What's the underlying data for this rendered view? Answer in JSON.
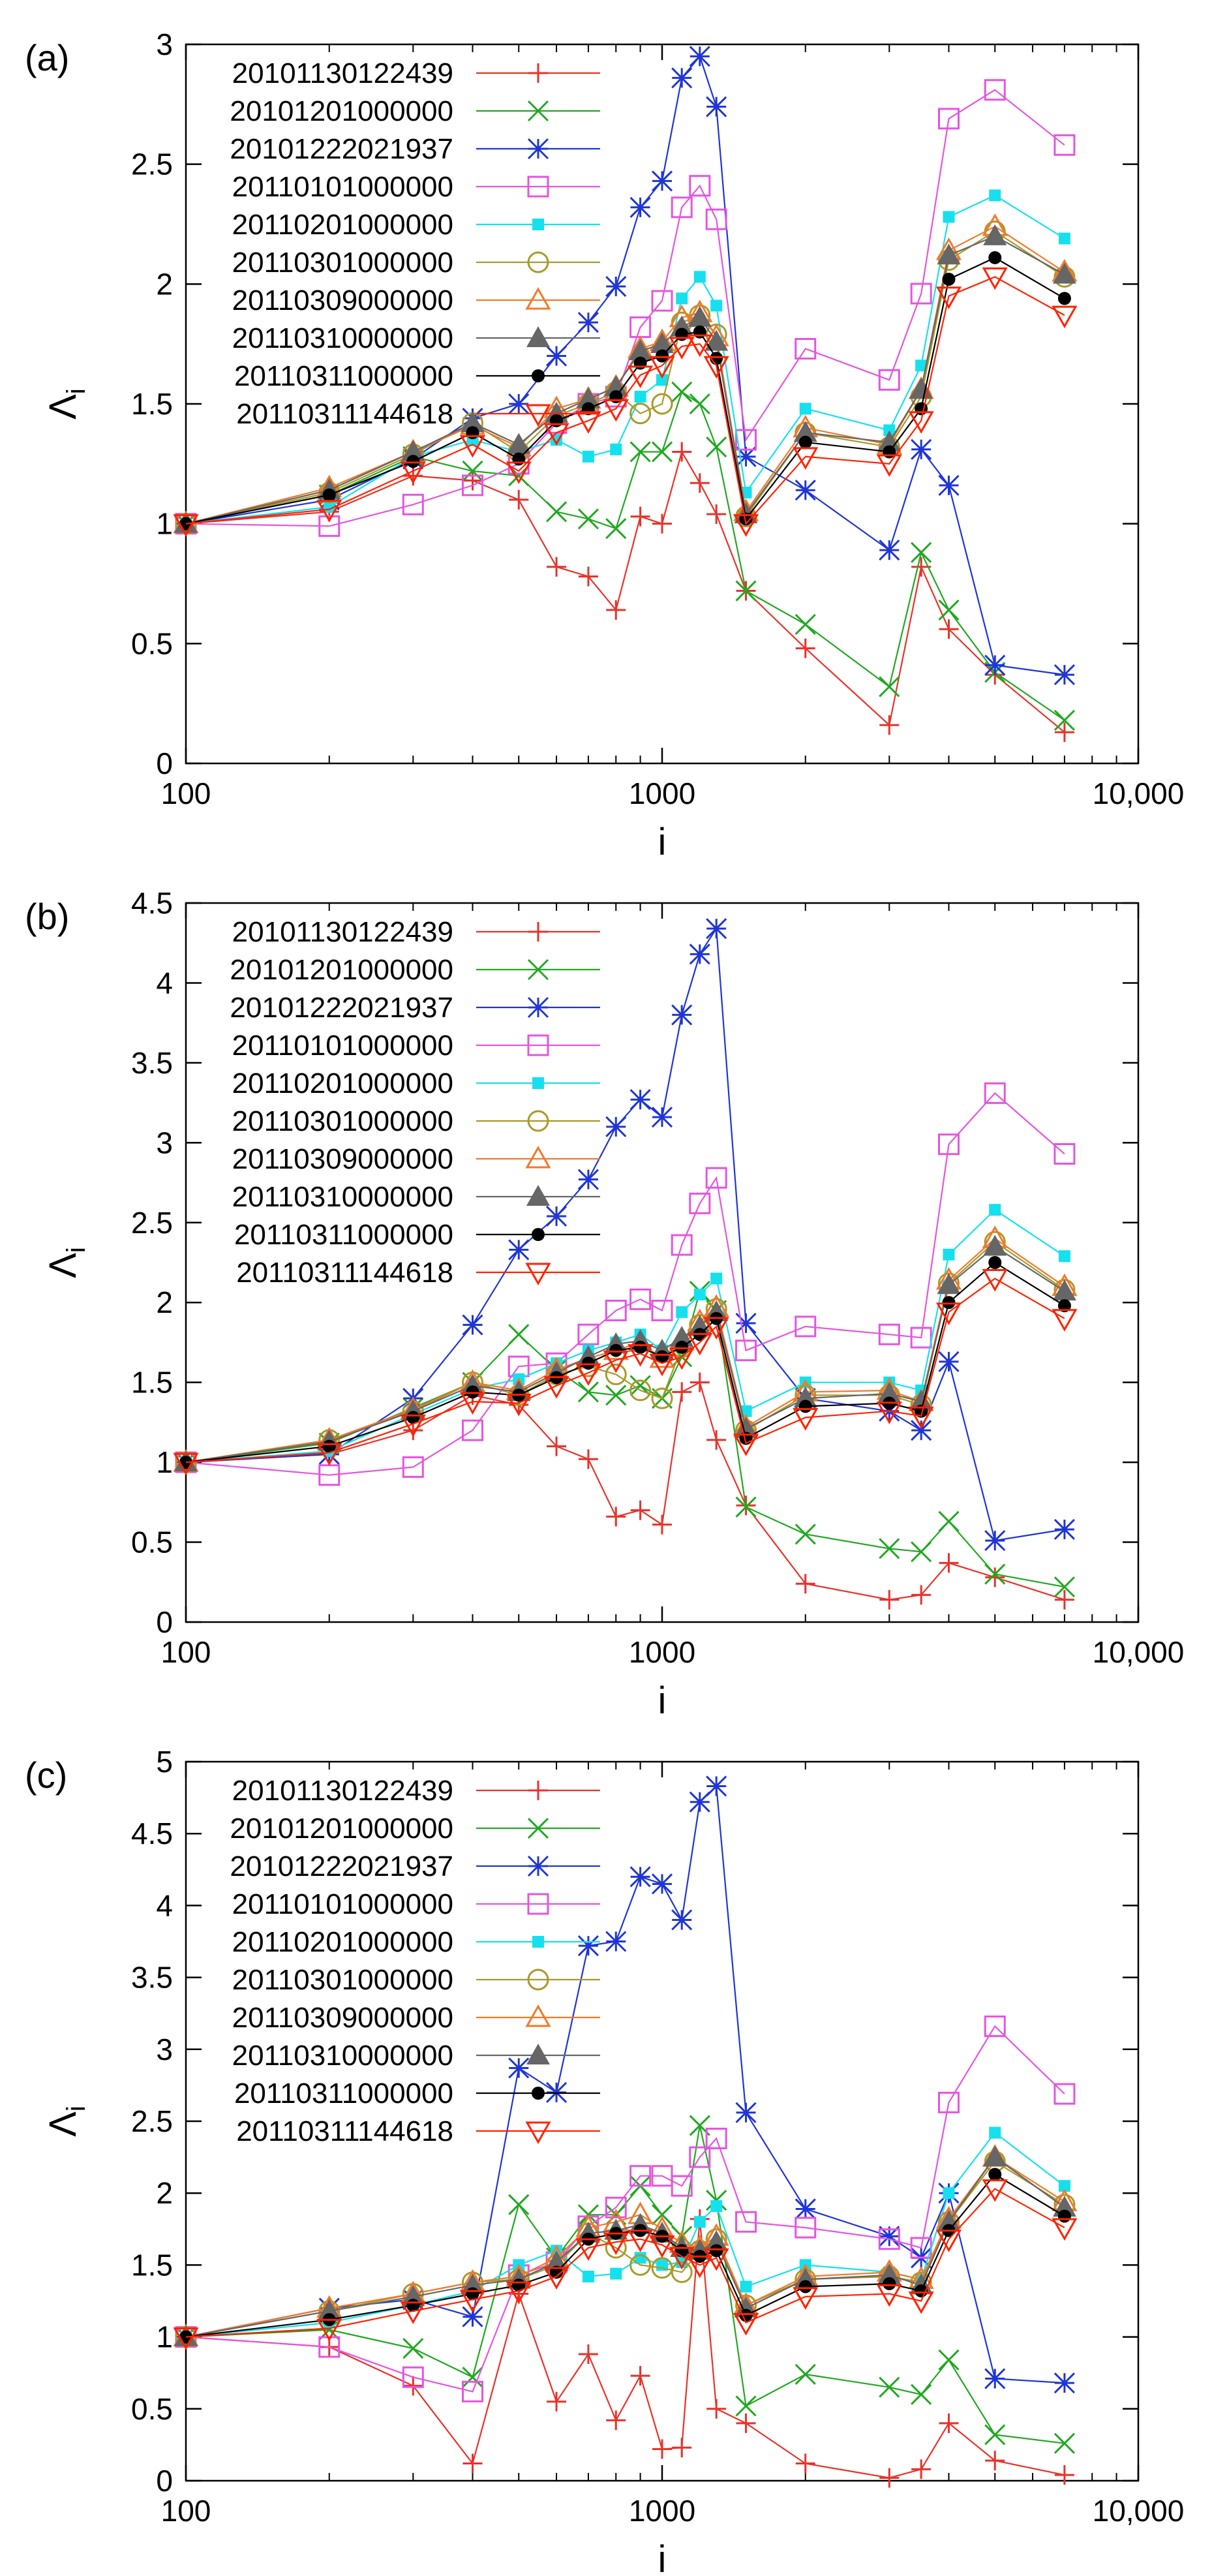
{
  "colors": {
    "s1": "#e8322a",
    "s2": "#21a821",
    "s3": "#1f35d6",
    "s4": "#e455e0",
    "s5": "#16e0ee",
    "s6": "#a89a2a",
    "s7": "#f07a2a",
    "s8": "#666666",
    "s9": "#000000",
    "s10": "#ff2200"
  },
  "chart_data": [
    {
      "type": "line",
      "panel_label": "(a)",
      "xlabel": "i",
      "ylabel": "Λ",
      "ylabel_sub": "i",
      "xscale": "log",
      "xlim": [
        100,
        10000
      ],
      "ylim": [
        0,
        3
      ],
      "xticks": [
        {
          "v": 100,
          "label": "100"
        },
        {
          "v": 1000,
          "label": "1000"
        },
        {
          "v": 10000,
          "label": "10,000"
        }
      ],
      "yticks": [
        {
          "v": 0,
          "label": "0"
        },
        {
          "v": 0.5,
          "label": "0.5"
        },
        {
          "v": 1,
          "label": "1"
        },
        {
          "v": 1.5,
          "label": "1.5"
        },
        {
          "v": 2,
          "label": "2"
        },
        {
          "v": 2.5,
          "label": "2.5"
        },
        {
          "v": 3,
          "label": "3"
        }
      ],
      "x": [
        100,
        200,
        300,
        400,
        500,
        600,
        700,
        800,
        900,
        1000,
        1100,
        1200,
        1300,
        1500,
        2000,
        3000,
        3500,
        4000,
        5000,
        7000
      ],
      "series": [
        {
          "name": "20101130122439",
          "marker": "plus",
          "color": "s1",
          "values": [
            1,
            1.05,
            1.2,
            1.18,
            1.1,
            0.82,
            0.78,
            0.64,
            1.03,
            1.0,
            1.3,
            1.17,
            1.04,
            0.72,
            0.48,
            0.16,
            0.82,
            0.56,
            0.37,
            0.13
          ]
        },
        {
          "name": "20101201000000",
          "marker": "cross",
          "color": "s2",
          "values": [
            1,
            1.12,
            1.28,
            1.22,
            1.2,
            1.05,
            1.02,
            0.98,
            1.3,
            1.3,
            1.55,
            1.5,
            1.32,
            0.72,
            0.58,
            0.32,
            0.88,
            0.64,
            0.38,
            0.18
          ]
        },
        {
          "name": "20101222021937",
          "marker": "star",
          "color": "s3",
          "values": [
            1,
            1.1,
            1.27,
            1.44,
            1.5,
            1.7,
            1.84,
            1.99,
            2.32,
            2.43,
            2.86,
            2.95,
            2.74,
            1.28,
            1.14,
            0.89,
            1.31,
            1.16,
            0.41,
            0.37
          ]
        },
        {
          "name": "20110101000000",
          "marker": "square",
          "color": "s4",
          "values": [
            1,
            0.99,
            1.08,
            1.16,
            1.25,
            1.42,
            1.5,
            1.53,
            1.82,
            1.93,
            2.32,
            2.41,
            2.27,
            1.35,
            1.73,
            1.6,
            1.96,
            2.69,
            2.81,
            2.58
          ]
        },
        {
          "name": "20110201000000",
          "marker": "fsquare",
          "color": "s5",
          "values": [
            1,
            1.07,
            1.28,
            1.35,
            1.3,
            1.35,
            1.28,
            1.31,
            1.53,
            1.6,
            1.94,
            2.03,
            1.91,
            1.13,
            1.48,
            1.39,
            1.66,
            2.28,
            2.37,
            2.19
          ]
        },
        {
          "name": "20110301000000",
          "marker": "circle",
          "color": "s6",
          "values": [
            1,
            1.13,
            1.29,
            1.42,
            1.3,
            1.45,
            1.5,
            1.55,
            1.46,
            1.5,
            1.84,
            1.87,
            1.79,
            1.03,
            1.38,
            1.32,
            1.53,
            2.1,
            2.22,
            2.03
          ]
        },
        {
          "name": "20110309000000",
          "marker": "triangle",
          "color": "s7",
          "values": [
            1,
            1.15,
            1.3,
            1.41,
            1.32,
            1.48,
            1.52,
            1.57,
            1.73,
            1.76,
            1.86,
            1.88,
            1.78,
            1.05,
            1.4,
            1.33,
            1.56,
            2.14,
            2.24,
            2.05
          ]
        },
        {
          "name": "20110310000000",
          "marker": "ftriangle",
          "color": "s8",
          "values": [
            1,
            1.14,
            1.3,
            1.42,
            1.33,
            1.46,
            1.52,
            1.57,
            1.72,
            1.75,
            1.82,
            1.86,
            1.76,
            1.04,
            1.38,
            1.34,
            1.56,
            2.12,
            2.2,
            2.04
          ]
        },
        {
          "name": "20110311000000",
          "marker": "fcircle",
          "color": "s9",
          "values": [
            1,
            1.12,
            1.26,
            1.38,
            1.27,
            1.43,
            1.48,
            1.53,
            1.67,
            1.7,
            1.79,
            1.8,
            1.69,
            1.02,
            1.34,
            1.3,
            1.48,
            2.02,
            2.11,
            1.94
          ]
        },
        {
          "name": "20110311144618",
          "marker": "itriangle",
          "color": "s10",
          "values": [
            1,
            1.06,
            1.22,
            1.33,
            1.22,
            1.38,
            1.43,
            1.48,
            1.62,
            1.66,
            1.74,
            1.75,
            1.66,
            1.0,
            1.28,
            1.25,
            1.43,
            1.95,
            2.03,
            1.87
          ]
        }
      ]
    },
    {
      "type": "line",
      "panel_label": "(b)",
      "xlabel": "i",
      "ylabel": "Λ",
      "ylabel_sub": "i",
      "xscale": "log",
      "xlim": [
        100,
        10000
      ],
      "ylim": [
        0,
        4.5
      ],
      "xticks": [
        {
          "v": 100,
          "label": "100"
        },
        {
          "v": 1000,
          "label": "1000"
        },
        {
          "v": 10000,
          "label": "10,000"
        }
      ],
      "yticks": [
        {
          "v": 0,
          "label": "0"
        },
        {
          "v": 0.5,
          "label": "0.5"
        },
        {
          "v": 1,
          "label": "1"
        },
        {
          "v": 1.5,
          "label": "1.5"
        },
        {
          "v": 2,
          "label": "2"
        },
        {
          "v": 2.5,
          "label": "2.5"
        },
        {
          "v": 3,
          "label": "3"
        },
        {
          "v": 3.5,
          "label": "3.5"
        },
        {
          "v": 4,
          "label": "4"
        },
        {
          "v": 4.5,
          "label": "4.5"
        }
      ],
      "x": [
        100,
        200,
        300,
        400,
        500,
        600,
        700,
        800,
        900,
        1000,
        1100,
        1200,
        1300,
        1500,
        2000,
        3000,
        3500,
        4000,
        5000,
        7000
      ],
      "series": [
        {
          "name": "20101130122439",
          "marker": "plus",
          "color": "s1",
          "values": [
            1,
            1.05,
            1.2,
            1.42,
            1.36,
            1.1,
            1.02,
            0.66,
            0.7,
            0.61,
            1.44,
            1.5,
            1.14,
            0.73,
            0.24,
            0.14,
            0.17,
            0.37,
            0.28,
            0.14
          ]
        },
        {
          "name": "20101201000000",
          "marker": "cross",
          "color": "s2",
          "values": [
            1,
            1.12,
            1.34,
            1.5,
            1.8,
            1.58,
            1.44,
            1.42,
            1.48,
            1.4,
            1.66,
            2.07,
            1.95,
            0.72,
            0.55,
            0.46,
            0.44,
            0.63,
            0.3,
            0.22
          ]
        },
        {
          "name": "20101222021937",
          "marker": "star",
          "color": "s3",
          "values": [
            1,
            1.05,
            1.4,
            1.86,
            2.33,
            2.54,
            2.77,
            3.1,
            3.27,
            3.16,
            3.8,
            4.18,
            4.34,
            1.87,
            1.4,
            1.32,
            1.2,
            1.63,
            0.51,
            0.58
          ]
        },
        {
          "name": "20110101000000",
          "marker": "square",
          "color": "s4",
          "values": [
            1,
            0.92,
            0.97,
            1.2,
            1.6,
            1.62,
            1.8,
            1.95,
            2.02,
            1.95,
            2.36,
            2.62,
            2.78,
            1.7,
            1.85,
            1.8,
            1.78,
            2.99,
            3.31,
            2.93
          ]
        },
        {
          "name": "20110201000000",
          "marker": "fsquare",
          "color": "s5",
          "values": [
            1,
            1.07,
            1.3,
            1.46,
            1.52,
            1.62,
            1.7,
            1.75,
            1.8,
            1.7,
            1.94,
            2.05,
            2.15,
            1.32,
            1.5,
            1.5,
            1.45,
            2.3,
            2.58,
            2.29
          ]
        },
        {
          "name": "20110301000000",
          "marker": "circle",
          "color": "s6",
          "values": [
            1,
            1.14,
            1.32,
            1.5,
            1.42,
            1.55,
            1.6,
            1.55,
            1.45,
            1.4,
            1.72,
            1.86,
            1.96,
            1.2,
            1.42,
            1.42,
            1.36,
            2.12,
            2.38,
            2.08
          ]
        },
        {
          "name": "20110309000000",
          "marker": "triangle",
          "color": "s7",
          "values": [
            1,
            1.14,
            1.33,
            1.5,
            1.45,
            1.58,
            1.65,
            1.7,
            1.75,
            1.65,
            1.76,
            1.88,
            1.97,
            1.22,
            1.44,
            1.45,
            1.38,
            2.14,
            2.4,
            2.1
          ]
        },
        {
          "name": "20110310000000",
          "marker": "ftriangle",
          "color": "s8",
          "values": [
            1,
            1.13,
            1.32,
            1.48,
            1.44,
            1.56,
            1.66,
            1.74,
            1.76,
            1.7,
            1.78,
            1.85,
            1.94,
            1.21,
            1.4,
            1.43,
            1.38,
            2.11,
            2.35,
            2.07
          ]
        },
        {
          "name": "20110311000000",
          "marker": "fcircle",
          "color": "s9",
          "values": [
            1,
            1.1,
            1.28,
            1.44,
            1.42,
            1.53,
            1.62,
            1.7,
            1.72,
            1.66,
            1.72,
            1.8,
            1.9,
            1.15,
            1.35,
            1.37,
            1.32,
            2.0,
            2.25,
            1.98
          ]
        },
        {
          "name": "20110311144618",
          "marker": "itriangle",
          "color": "s10",
          "values": [
            1,
            1.06,
            1.24,
            1.38,
            1.37,
            1.48,
            1.56,
            1.64,
            1.68,
            1.62,
            1.66,
            1.75,
            1.85,
            1.12,
            1.28,
            1.32,
            1.29,
            1.94,
            2.15,
            1.9
          ]
        }
      ]
    },
    {
      "type": "line",
      "panel_label": "(c)",
      "xlabel": "i",
      "ylabel": "Λ",
      "ylabel_sub": "i",
      "xscale": "log",
      "xlim": [
        100,
        10000
      ],
      "ylim": [
        0,
        5
      ],
      "xticks": [
        {
          "v": 100,
          "label": "100"
        },
        {
          "v": 1000,
          "label": "1000"
        },
        {
          "v": 10000,
          "label": "10,000"
        }
      ],
      "yticks": [
        {
          "v": 0,
          "label": "0"
        },
        {
          "v": 0.5,
          "label": "0.5"
        },
        {
          "v": 1,
          "label": "1"
        },
        {
          "v": 1.5,
          "label": "1.5"
        },
        {
          "v": 2,
          "label": "2"
        },
        {
          "v": 2.5,
          "label": "2.5"
        },
        {
          "v": 3,
          "label": "3"
        },
        {
          "v": 3.5,
          "label": "3.5"
        },
        {
          "v": 4,
          "label": "4"
        },
        {
          "v": 4.5,
          "label": "4.5"
        },
        {
          "v": 5,
          "label": "5"
        }
      ],
      "x": [
        100,
        200,
        300,
        400,
        500,
        600,
        700,
        800,
        900,
        1000,
        1100,
        1200,
        1300,
        1500,
        2000,
        3000,
        3500,
        4000,
        5000,
        7000
      ],
      "series": [
        {
          "name": "20101130122439",
          "marker": "plus",
          "color": "s1",
          "values": [
            1,
            0.93,
            0.66,
            0.12,
            1.3,
            0.55,
            0.88,
            0.42,
            0.73,
            0.22,
            0.23,
            1.82,
            0.5,
            0.4,
            0.12,
            0.02,
            0.08,
            0.4,
            0.14,
            0.04
          ]
        },
        {
          "name": "20101201000000",
          "marker": "cross",
          "color": "s2",
          "values": [
            1,
            1.05,
            0.92,
            0.72,
            1.92,
            1.55,
            1.85,
            1.85,
            2.05,
            1.85,
            1.7,
            2.47,
            1.95,
            0.52,
            0.74,
            0.65,
            0.6,
            0.84,
            0.32,
            0.26
          ]
        },
        {
          "name": "20101222021937",
          "marker": "star",
          "color": "s3",
          "values": [
            1,
            1.2,
            1.26,
            1.14,
            2.87,
            2.7,
            3.72,
            3.75,
            4.2,
            4.15,
            3.9,
            4.72,
            4.83,
            2.56,
            1.89,
            1.7,
            1.55,
            2.0,
            0.71,
            0.68
          ]
        },
        {
          "name": "20110101000000",
          "marker": "square",
          "color": "s4",
          "values": [
            1,
            0.93,
            0.72,
            0.62,
            1.43,
            1.52,
            1.77,
            1.9,
            2.12,
            2.12,
            2.05,
            2.25,
            2.38,
            1.8,
            1.76,
            1.68,
            1.62,
            2.63,
            3.16,
            2.69
          ]
        },
        {
          "name": "20110201000000",
          "marker": "fsquare",
          "color": "s5",
          "values": [
            1,
            1.1,
            1.22,
            1.32,
            1.5,
            1.6,
            1.42,
            1.44,
            1.55,
            1.5,
            1.52,
            1.8,
            1.91,
            1.35,
            1.5,
            1.45,
            1.4,
            2.0,
            2.42,
            2.05
          ]
        },
        {
          "name": "20110301000000",
          "marker": "circle",
          "color": "s6",
          "values": [
            1,
            1.18,
            1.3,
            1.38,
            1.4,
            1.5,
            1.72,
            1.62,
            1.5,
            1.48,
            1.45,
            1.6,
            1.68,
            1.22,
            1.4,
            1.42,
            1.38,
            1.8,
            2.22,
            1.92
          ]
        },
        {
          "name": "20110309000000",
          "marker": "triangle",
          "color": "s7",
          "values": [
            1,
            1.2,
            1.3,
            1.38,
            1.42,
            1.55,
            1.76,
            1.8,
            1.85,
            1.75,
            1.65,
            1.62,
            1.7,
            1.22,
            1.42,
            1.45,
            1.4,
            1.82,
            2.25,
            1.94
          ]
        },
        {
          "name": "20110310000000",
          "marker": "ftriangle",
          "color": "s8",
          "values": [
            1,
            1.18,
            1.28,
            1.36,
            1.4,
            1.52,
            1.72,
            1.74,
            1.78,
            1.72,
            1.62,
            1.6,
            1.66,
            1.2,
            1.4,
            1.43,
            1.36,
            1.8,
            2.25,
            1.9
          ]
        },
        {
          "name": "20110311000000",
          "marker": "fcircle",
          "color": "s9",
          "values": [
            1,
            1.12,
            1.22,
            1.3,
            1.36,
            1.45,
            1.68,
            1.72,
            1.74,
            1.7,
            1.6,
            1.56,
            1.6,
            1.15,
            1.35,
            1.37,
            1.32,
            1.74,
            2.13,
            1.84
          ]
        },
        {
          "name": "20110311144618",
          "marker": "itriangle",
          "color": "s10",
          "values": [
            1,
            1.06,
            1.18,
            1.26,
            1.32,
            1.42,
            1.62,
            1.66,
            1.68,
            1.64,
            1.56,
            1.5,
            1.55,
            1.1,
            1.28,
            1.3,
            1.25,
            1.68,
            2.03,
            1.76
          ]
        }
      ]
    }
  ]
}
